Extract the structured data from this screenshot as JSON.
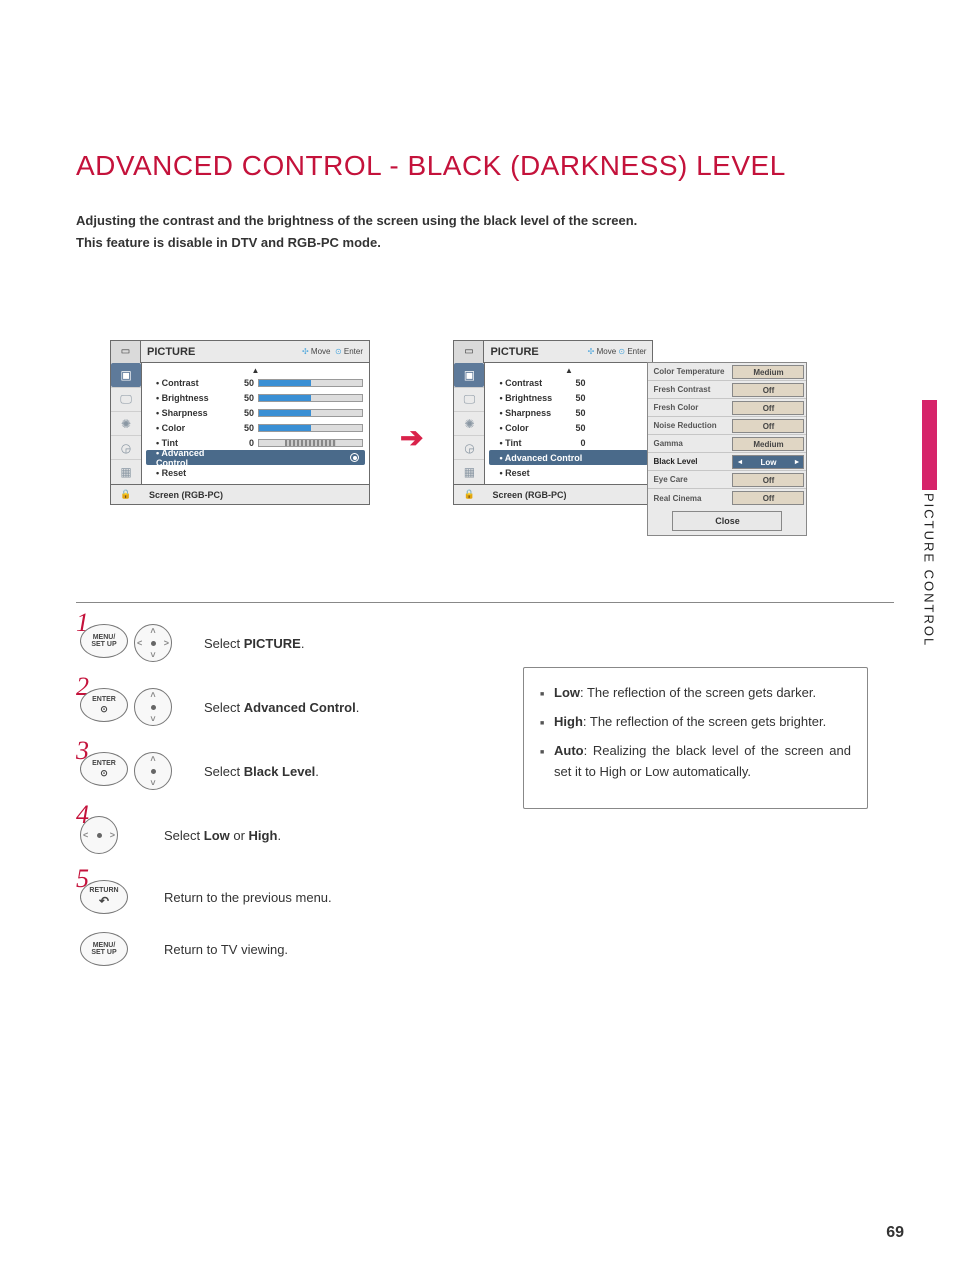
{
  "title": "ADVANCED CONTROL - BLACK (DARKNESS) LEVEL",
  "intro_line1": "Adjusting the contrast and the brightness of the screen using the black level of the screen.",
  "intro_line2": "This feature is disable in DTV and RGB-PC mode.",
  "sidebar_label": "PICTURE CONTROL",
  "page_number": "69",
  "osd": {
    "header_title": "PICTURE",
    "header_ctrl_move": "Move",
    "header_ctrl_enter": "Enter",
    "footer": "Screen (RGB-PC)",
    "rows": [
      {
        "label": "• Contrast",
        "value": "50",
        "fill": 50
      },
      {
        "label": "• Brightness",
        "value": "50",
        "fill": 50
      },
      {
        "label": "• Sharpness",
        "value": "50",
        "fill": 50
      },
      {
        "label": "• Color",
        "value": "50",
        "fill": 50
      },
      {
        "label": "• Tint",
        "value": "0",
        "fill": 0,
        "tint": true
      }
    ],
    "advanced_row": "• Advanced Control",
    "reset_row": "• Reset"
  },
  "advanced_panel": {
    "rows": [
      {
        "label": "Color Temperature",
        "value": "Medium"
      },
      {
        "label": "Fresh Contrast",
        "value": "Off"
      },
      {
        "label": "Fresh Color",
        "value": "Off"
      },
      {
        "label": "Noise Reduction",
        "value": "Off"
      },
      {
        "label": "Gamma",
        "value": "Medium"
      },
      {
        "label": "Black Level",
        "value": "Low",
        "selected": true
      },
      {
        "label": "Eye Care",
        "value": "Off"
      },
      {
        "label": "Real Cinema",
        "value": "Off"
      }
    ],
    "close": "Close"
  },
  "buttons": {
    "menu_setup": "MENU/\nSET UP",
    "enter": "ENTER",
    "return": "RETURN"
  },
  "steps": {
    "s1_prefix": "Select ",
    "s1_bold": "PICTURE",
    "s1_suffix": ".",
    "s2_prefix": "Select ",
    "s2_bold": "Advanced Control",
    "s2_suffix": ".",
    "s3_prefix": "Select ",
    "s3_bold": "Black Level",
    "s3_suffix": ".",
    "s4_prefix": "Select ",
    "s4_bold1": "Low",
    "s4_mid": " or ",
    "s4_bold2": "High",
    "s4_suffix": ".",
    "s5": "Return to the previous menu.",
    "s6": "Return to TV viewing."
  },
  "info": {
    "i1_bold": "Low",
    "i1_rest": ": The reflection of the screen gets darker.",
    "i2_bold": "High",
    "i2_rest": ": The reflection of the screen gets brighter.",
    "i3_bold": "Auto",
    "i3_rest": ": Realizing the black level of the screen and set it to High or Low automatically."
  },
  "colors": {
    "accent": "#c4123b",
    "osd_highlight": "#4a6a8a",
    "osd_bar": "#3a8fd4"
  }
}
